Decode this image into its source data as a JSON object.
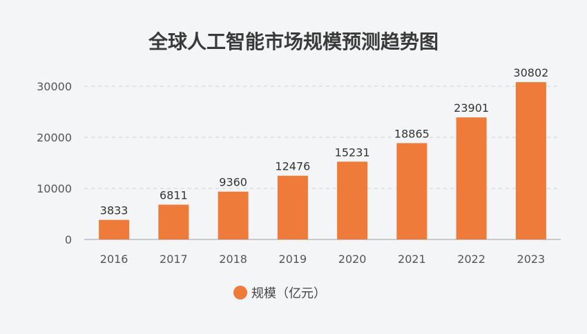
{
  "chart_data": {
    "type": "bar",
    "title": "全球人工智能市场规模预测趋势图",
    "categories": [
      "2016",
      "2017",
      "2018",
      "2019",
      "2020",
      "2021",
      "2022",
      "2023"
    ],
    "series": [
      {
        "name": "规模（亿元）",
        "values": [
          3833,
          6811,
          9360,
          12476,
          15231,
          18865,
          23901,
          30802
        ],
        "color": "#ee7b3a"
      }
    ],
    "ylim": [
      0,
      30000
    ],
    "yticks": [
      0,
      10000,
      20000,
      30000
    ],
    "grid": true,
    "legend_position": "bottom-center",
    "data_labels": true
  }
}
